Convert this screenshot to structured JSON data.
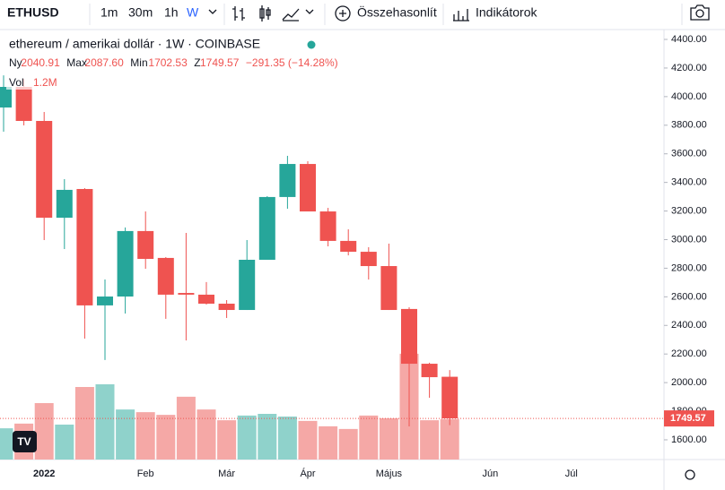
{
  "toolbar": {
    "symbol": "ETHUSD",
    "intervals": [
      "1m",
      "30m",
      "1h",
      "W"
    ],
    "compare": "Összehasonlít",
    "indicators": "Indikátorok"
  },
  "chart_data": {
    "type": "candlestick",
    "title": "ethereum / amerikai dollár · 1W · COINBASE",
    "ohlc_labels": [
      "Ny",
      "Max",
      "Min",
      "Z"
    ],
    "change_label": "−291.35 (−14.28%)",
    "categories": [
      null,
      null,
      "2022",
      null,
      null,
      null,
      null,
      "Feb",
      null,
      null,
      null,
      "Már",
      null,
      null,
      null,
      "Ápr",
      null,
      null,
      null,
      "Május",
      null,
      null,
      null,
      null,
      "Jún",
      null,
      null,
      null,
      "Júl"
    ],
    "open": [
      3924,
      4068,
      3830,
      3153,
      3354,
      2540,
      2602,
      3060,
      2872,
      2627,
      2615,
      2552,
      2508,
      2859,
      3298,
      3529,
      3197,
      2991,
      2915,
      2815,
      2515,
      2132,
      2040.91,
      null,
      null,
      null,
      null,
      null,
      null
    ],
    "high": [
      4149,
      4124,
      3893,
      3423,
      3360,
      2721,
      3085,
      3197,
      2878,
      3047,
      2703,
      2577,
      2997,
      3304,
      3586,
      3548,
      3222,
      3072,
      2947,
      2972,
      2527,
      2139,
      2087.6,
      null,
      null,
      null,
      null,
      null,
      null
    ],
    "low": [
      3755,
      3799,
      2997,
      2934,
      2308,
      2158,
      2483,
      2796,
      2446,
      2295,
      2546,
      2452,
      2508,
      2859,
      3216,
      3197,
      2953,
      2890,
      2721,
      2508,
      1694,
      1894,
      1702.53,
      null,
      null,
      null,
      null,
      null,
      null
    ],
    "close": [
      4068,
      3830,
      3153,
      3348,
      2540,
      2602,
      3060,
      2865,
      2615,
      2615,
      2552,
      2508,
      2859,
      3298,
      3529,
      3197,
      2991,
      2915,
      2815,
      2508,
      2132,
      2038,
      1749.57,
      null,
      null,
      null,
      null,
      null,
      null
    ],
    "volume": {
      "name": "Vol",
      "values": [
        0.93,
        1.07,
        1.68,
        1.04,
        2.16,
        2.24,
        1.49,
        1.41,
        1.33,
        1.87,
        1.49,
        1.17,
        1.31,
        1.36,
        1.28,
        1.15,
        0.99,
        0.91,
        1.31,
        1.23,
        3.15,
        1.17,
        1.2,
        null,
        null,
        null,
        null,
        null,
        null
      ],
      "last_label": "1.2M"
    },
    "up_color": "#26a69a",
    "down_color": "#ef5350",
    "up_volume_color": "#8fd2cb",
    "down_volume_color": "#f5a8a6",
    "ylim": [
      1462,
      4469
    ],
    "yticks": [
      {
        "value": 1600,
        "label": "1600.00"
      },
      {
        "value": 1800,
        "label": "1800.00"
      },
      {
        "value": 2000,
        "label": "2000.00"
      },
      {
        "value": 2200,
        "label": "2200.00"
      },
      {
        "value": 2400,
        "label": "2400.00"
      },
      {
        "value": 2600,
        "label": "2600.00"
      },
      {
        "value": 2800,
        "label": "2800.00"
      },
      {
        "value": 3000,
        "label": "3000.00"
      },
      {
        "value": 3200,
        "label": "3200.00"
      },
      {
        "value": 3400,
        "label": "3400.00"
      },
      {
        "value": 3600,
        "label": "3600.00"
      },
      {
        "value": 3800,
        "label": "3800.00"
      },
      {
        "value": 4000,
        "label": "4000.00"
      },
      {
        "value": 4200,
        "label": "4200.00"
      },
      {
        "value": 4400,
        "label": "4400.00"
      }
    ],
    "last_price_label": "1749.57"
  }
}
